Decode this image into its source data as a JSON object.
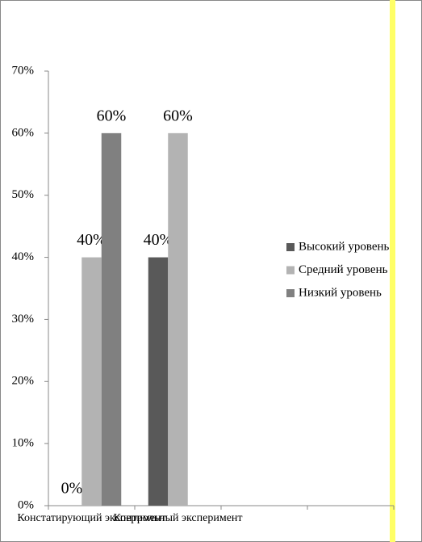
{
  "chart_data": {
    "type": "bar",
    "categories": [
      "Констатирующий эксперимент",
      "Контрольный эксперимент",
      null,
      null
    ],
    "series": [
      {
        "name": "Высокий уровень",
        "color": "#595959",
        "values": [
          0,
          40,
          null,
          null
        ],
        "value_labels": [
          "0%",
          "40%",
          null,
          null
        ]
      },
      {
        "name": "Средний уровень",
        "color": "#b3b3b3",
        "values": [
          40,
          60,
          null,
          null
        ],
        "value_labels": [
          "40%",
          "60%",
          null,
          null
        ]
      },
      {
        "name": "Низкий уровень",
        "color": "#808080",
        "values": [
          60,
          null,
          null,
          null
        ],
        "value_labels": [
          "60%",
          null,
          null,
          null
        ]
      }
    ],
    "ylim": [
      0,
      70
    ],
    "yticks": [
      {
        "value": 0,
        "label": "0%"
      },
      {
        "value": 10,
        "label": "10%"
      },
      {
        "value": 20,
        "label": "20%"
      },
      {
        "value": 30,
        "label": "30%"
      },
      {
        "value": 40,
        "label": "40%"
      },
      {
        "value": 50,
        "label": "50%"
      },
      {
        "value": 60,
        "label": "60%"
      },
      {
        "value": 70,
        "label": "70%"
      }
    ],
    "legend": "right"
  }
}
